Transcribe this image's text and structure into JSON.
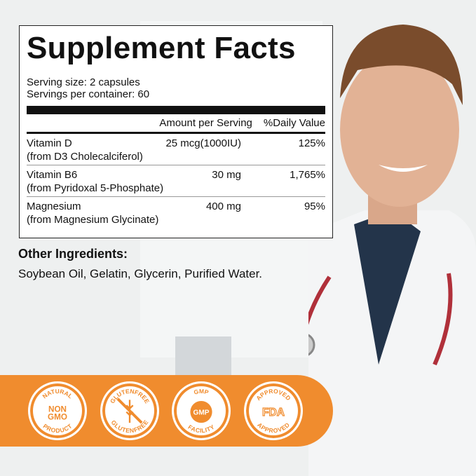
{
  "panel": {
    "title": "Supplement Facts",
    "serving_size": "Serving size: 2 capsules",
    "servings_per_container": "Servings per container: 60",
    "header": {
      "amount": "Amount per Serving",
      "dv": "%Daily Value"
    },
    "rows": [
      {
        "name": "Vitamin D",
        "amount": "25 mcg(1000IU)",
        "dv": "125%",
        "source": "(from D3 Cholecalciferol)"
      },
      {
        "name": "Vitamin B6",
        "amount": "30 mg",
        "dv": "1,765%",
        "source": "(from Pyridoxal 5-Phosphate)"
      },
      {
        "name": "Magnesium",
        "amount": "400 mg",
        "dv": "95%",
        "source": "(from Magnesium Glycinate)"
      }
    ]
  },
  "other": {
    "heading": "Other Ingredients:",
    "list": "Soybean Oil, Gelatin, Glycerin, Purified Water."
  },
  "badges": [
    {
      "top": "NATURAL",
      "center": "NON GMO",
      "bottom": "PRODUCT"
    },
    {
      "top": "GLUTENFREE",
      "center": "",
      "bottom": "GLUTENFREE"
    },
    {
      "top": "GMP",
      "center": "GMP",
      "bottom": "FACILITY"
    },
    {
      "top": "APPROVED",
      "center": "FDA",
      "bottom": "APPROVED"
    }
  ],
  "colors": {
    "accent": "#f08c2e"
  }
}
